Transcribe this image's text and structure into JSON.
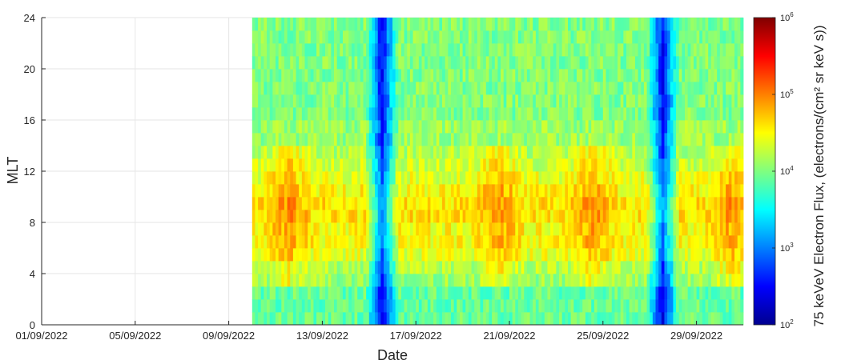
{
  "chart_data": {
    "type": "heatmap",
    "title": "",
    "xlabel": "Date",
    "ylabel": "MLT",
    "x_ticks": [
      "01/09/2022",
      "05/09/2022",
      "09/09/2022",
      "13/09/2022",
      "17/09/2022",
      "21/09/2022",
      "25/09/2022",
      "29/09/2022"
    ],
    "y_ticks": [
      "0",
      "4",
      "8",
      "12",
      "16",
      "20",
      "24"
    ],
    "xlim": [
      "01/09/2022",
      "01/10/2022"
    ],
    "ylim": [
      0,
      24
    ],
    "grid": true,
    "colormap": "jet",
    "colorbar": {
      "label": "75 keVeV Electron Flux, (electrons/(cm² sr keV s))",
      "scale": "log",
      "range": [
        100,
        1000000
      ],
      "ticks": [
        {
          "base": "10",
          "exp": "2"
        },
        {
          "base": "10",
          "exp": "3"
        },
        {
          "base": "10",
          "exp": "4"
        },
        {
          "base": "10",
          "exp": "5"
        },
        {
          "base": "10",
          "exp": "6"
        }
      ]
    },
    "mlt_bin_hours": 1,
    "data_start_date": "10/09/2022",
    "typical_log10_flux_by_mlt": [
      3.9,
      3.9,
      3.9,
      4.1,
      4.2,
      4.4,
      4.5,
      4.5,
      4.6,
      4.6,
      4.5,
      4.4,
      4.3,
      4.2,
      4.1,
      4.1,
      4.0,
      4.0,
      4.0,
      4.0,
      4.0,
      4.0,
      4.0,
      4.0
    ],
    "events": [
      {
        "date": "11/09/2022",
        "description": "elevated flux on dayside"
      },
      {
        "date": "15/09/2022",
        "description": "dropout, flux near 10^2"
      },
      {
        "date": "20/09/2022",
        "description": "enhanced flux, dayside"
      },
      {
        "date": "24/09/2022",
        "description": "enhanced flux, dayside"
      },
      {
        "date": "27/09/2022",
        "description": "dropout, flux near 10^2"
      },
      {
        "date": "30/09/2022",
        "description": "enhanced flux, up to 10^5.5"
      }
    ]
  }
}
